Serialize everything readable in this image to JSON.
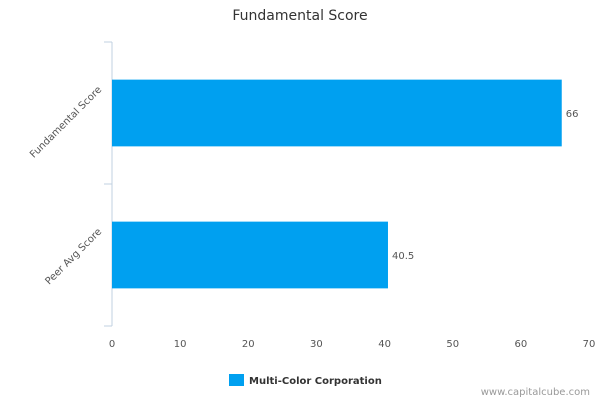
{
  "chart_data": {
    "type": "hbar",
    "title": "Fundamental Score",
    "categories": [
      "Fundamental Score",
      "Peer Avg Score"
    ],
    "series": [
      {
        "name": "Multi-Color Corporation",
        "color": "#00a0f0",
        "values": [
          66,
          40.5
        ]
      }
    ],
    "xlim": [
      0,
      70
    ],
    "xticks": [
      0,
      10,
      20,
      30,
      40,
      50,
      60,
      70
    ],
    "grid": false,
    "legend": "bottom",
    "watermark": "www.capitalcube.com"
  }
}
